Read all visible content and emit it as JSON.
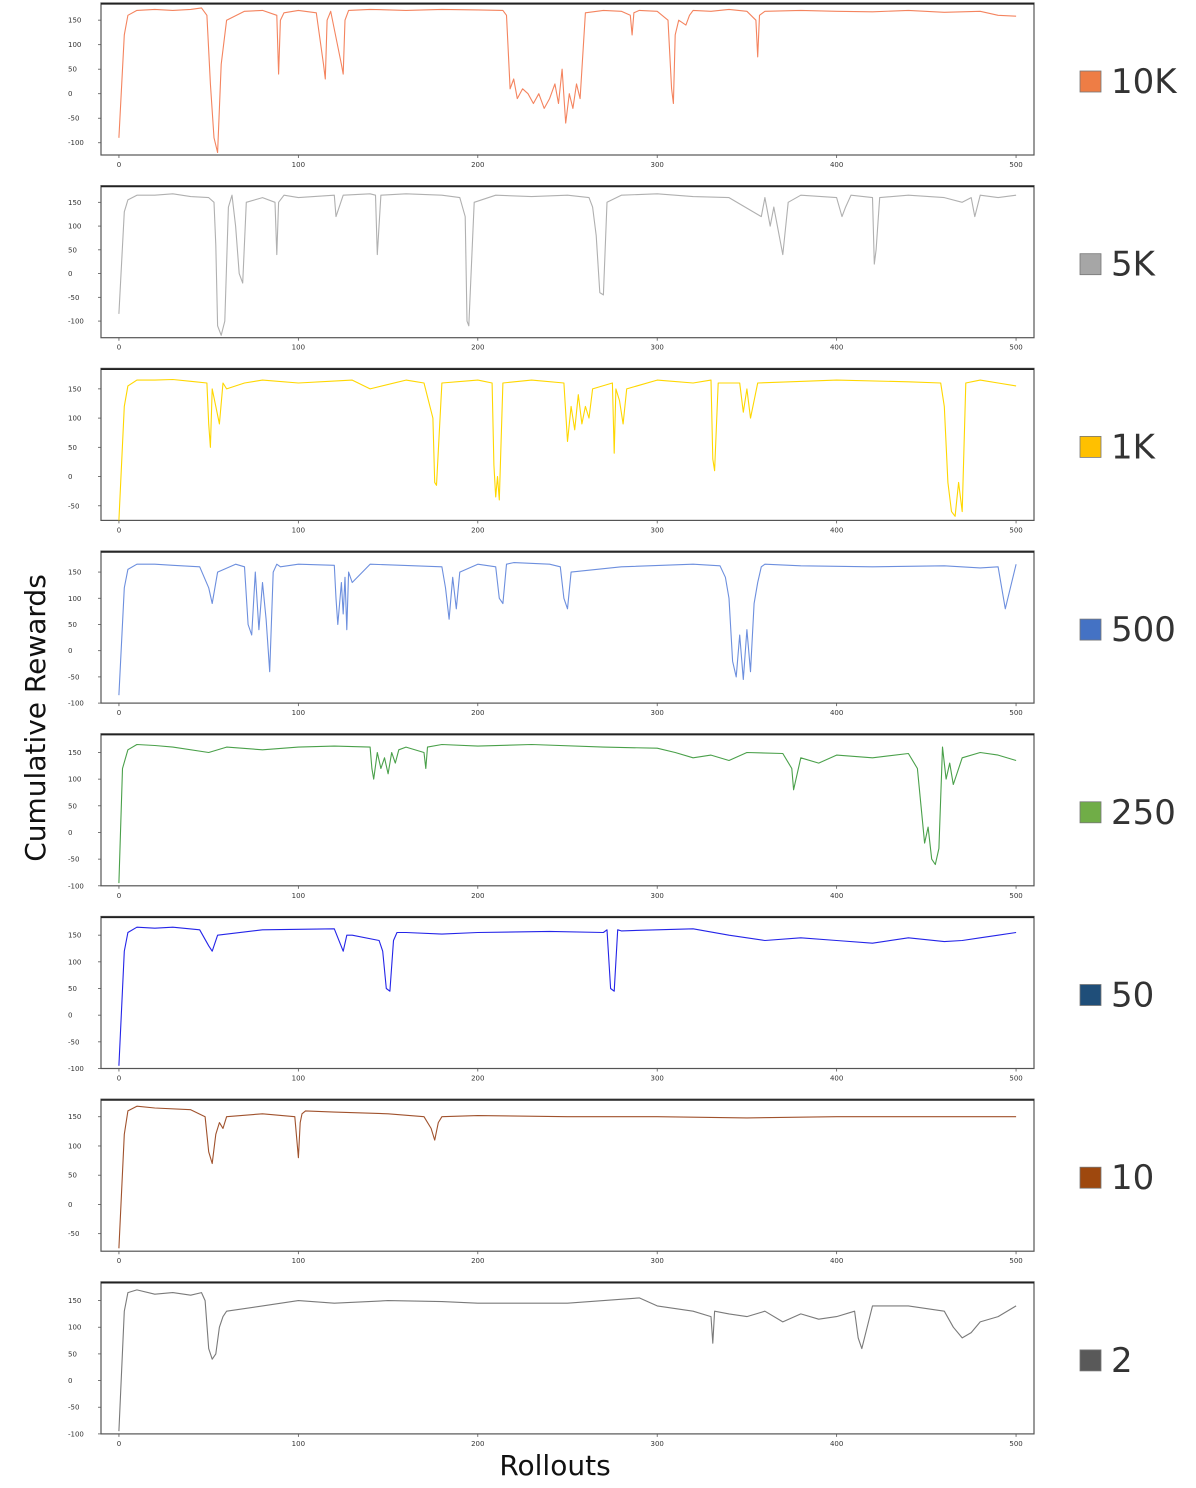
{
  "figure": {
    "xlabel": "Rollouts",
    "ylabel": "Cumulative Rewards"
  },
  "chart_data": [
    {
      "type": "line",
      "title": "",
      "xlabel": "",
      "ylabel": "",
      "xlim": [
        -10,
        510
      ],
      "ylim": [
        -125,
        185
      ],
      "xticks": [
        "0",
        "100",
        "200",
        "300",
        "400",
        "500"
      ],
      "yticks": [
        "150",
        "100",
        "50",
        "0",
        "-50",
        "-100"
      ],
      "legend": "10K",
      "color": "#f4845f",
      "swatch": "#ee7d45",
      "x": [
        0,
        3,
        5,
        10,
        20,
        30,
        40,
        46,
        49,
        51,
        53,
        55,
        57,
        60,
        70,
        80,
        88,
        89,
        90,
        92,
        100,
        110,
        114,
        115,
        116,
        118,
        124,
        125,
        126,
        128,
        140,
        160,
        180,
        200,
        214,
        216,
        218,
        220,
        222,
        225,
        228,
        231,
        234,
        237,
        240,
        243,
        245,
        247,
        249,
        251,
        253,
        255,
        257,
        260,
        270,
        280,
        285,
        286,
        287,
        290,
        300,
        306,
        308,
        309,
        310,
        312,
        316,
        318,
        320,
        330,
        340,
        350,
        355,
        356,
        357,
        360,
        380,
        400,
        420,
        440,
        460,
        480,
        490,
        500
      ],
      "y": [
        -90,
        120,
        160,
        170,
        172,
        170,
        172,
        175,
        160,
        20,
        -90,
        -120,
        60,
        150,
        168,
        170,
        160,
        40,
        150,
        165,
        170,
        165,
        60,
        30,
        150,
        168,
        60,
        40,
        150,
        170,
        172,
        170,
        172,
        171,
        170,
        160,
        10,
        30,
        -10,
        10,
        0,
        -20,
        0,
        -30,
        -10,
        20,
        -20,
        50,
        -60,
        0,
        -30,
        20,
        -10,
        165,
        170,
        168,
        160,
        120,
        165,
        170,
        168,
        150,
        10,
        -20,
        120,
        150,
        140,
        160,
        170,
        168,
        172,
        168,
        150,
        75,
        160,
        168,
        170,
        168,
        167,
        170,
        166,
        168,
        160,
        158
      ]
    },
    {
      "type": "line",
      "title": "",
      "xlabel": "",
      "ylabel": "",
      "xlim": [
        -10,
        510
      ],
      "ylim": [
        -135,
        185
      ],
      "xticks": [
        "0",
        "100",
        "200",
        "300",
        "400",
        "500"
      ],
      "yticks": [
        "150",
        "100",
        "50",
        "0",
        "-50",
        "-100"
      ],
      "legend": "5K",
      "color": "#b0b0b0",
      "swatch": "#a6a6a6",
      "x": [
        0,
        3,
        5,
        10,
        20,
        30,
        40,
        50,
        53,
        54,
        55,
        57,
        59,
        61,
        63,
        65,
        67,
        69,
        71,
        80,
        87,
        88,
        89,
        92,
        100,
        120,
        121,
        125,
        140,
        143,
        144,
        146,
        160,
        180,
        190,
        193,
        194,
        195,
        198,
        210,
        230,
        250,
        262,
        264,
        266,
        268,
        270,
        272,
        280,
        300,
        320,
        340,
        358,
        360,
        363,
        365,
        368,
        370,
        373,
        380,
        400,
        403,
        405,
        408,
        420,
        421,
        422,
        424,
        440,
        460,
        470,
        475,
        477,
        480,
        490,
        500
      ],
      "y": [
        -85,
        130,
        155,
        165,
        165,
        168,
        162,
        160,
        150,
        60,
        -110,
        -130,
        -100,
        140,
        165,
        100,
        0,
        -20,
        150,
        160,
        150,
        40,
        150,
        165,
        160,
        165,
        120,
        165,
        168,
        165,
        40,
        165,
        168,
        165,
        160,
        120,
        -100,
        -110,
        150,
        165,
        162,
        165,
        160,
        140,
        80,
        -40,
        -45,
        150,
        165,
        168,
        162,
        160,
        120,
        160,
        100,
        140,
        80,
        40,
        150,
        165,
        160,
        120,
        140,
        165,
        160,
        20,
        50,
        160,
        165,
        160,
        150,
        160,
        120,
        165,
        160,
        165
      ]
    },
    {
      "type": "line",
      "title": "",
      "xlabel": "",
      "ylabel": "",
      "xlim": [
        -10,
        510
      ],
      "ylim": [
        -75,
        185
      ],
      "xticks": [
        "0",
        "100",
        "200",
        "300",
        "400",
        "500"
      ],
      "yticks": [
        "150",
        "100",
        "50",
        "0",
        "-50"
      ],
      "legend": "1K",
      "color": "#ffd700",
      "swatch": "#ffc000",
      "x": [
        0,
        3,
        5,
        10,
        20,
        30,
        40,
        49,
        50,
        51,
        52,
        54,
        56,
        58,
        60,
        70,
        80,
        100,
        130,
        140,
        160,
        170,
        175,
        176,
        177,
        180,
        200,
        208,
        209,
        210,
        211,
        212,
        214,
        230,
        248,
        250,
        252,
        254,
        256,
        258,
        260,
        262,
        264,
        275,
        276,
        277,
        279,
        281,
        283,
        300,
        320,
        330,
        331,
        332,
        334,
        346,
        348,
        350,
        352,
        354,
        356,
        400,
        440,
        458,
        460,
        462,
        464,
        466,
        468,
        470,
        472,
        480,
        490,
        500
      ],
      "y": [
        -75,
        120,
        155,
        165,
        165,
        166,
        163,
        160,
        90,
        50,
        150,
        120,
        90,
        160,
        150,
        160,
        165,
        160,
        165,
        150,
        165,
        160,
        100,
        -10,
        -15,
        160,
        165,
        160,
        20,
        -35,
        0,
        -40,
        160,
        165,
        160,
        60,
        120,
        80,
        140,
        90,
        120,
        100,
        150,
        160,
        40,
        150,
        130,
        90,
        150,
        165,
        160,
        165,
        30,
        10,
        160,
        160,
        110,
        150,
        100,
        130,
        160,
        165,
        162,
        160,
        120,
        -10,
        -60,
        -68,
        -10,
        -60,
        160,
        165,
        160,
        155
      ]
    },
    {
      "type": "line",
      "title": "",
      "xlabel": "",
      "ylabel": "",
      "xlim": [
        -10,
        510
      ],
      "ylim": [
        -100,
        190
      ],
      "xticks": [
        "0",
        "100",
        "200",
        "300",
        "400",
        "500"
      ],
      "yticks": [
        "150",
        "100",
        "50",
        "0",
        "-50",
        "-100"
      ],
      "legend": "500",
      "color": "#6d8fde",
      "swatch": "#4472c4",
      "x": [
        0,
        3,
        5,
        10,
        20,
        30,
        45,
        50,
        52,
        55,
        65,
        70,
        72,
        74,
        76,
        78,
        80,
        82,
        84,
        86,
        88,
        90,
        100,
        120,
        121,
        122,
        124,
        125,
        126,
        127,
        128,
        130,
        140,
        180,
        182,
        184,
        186,
        188,
        190,
        200,
        210,
        212,
        214,
        216,
        220,
        240,
        246,
        248,
        250,
        252,
        280,
        320,
        335,
        338,
        340,
        342,
        344,
        346,
        348,
        350,
        352,
        354,
        356,
        358,
        360,
        380,
        420,
        460,
        480,
        490,
        492,
        494,
        500
      ],
      "y": [
        -85,
        120,
        155,
        165,
        165,
        163,
        160,
        120,
        90,
        150,
        165,
        160,
        50,
        30,
        150,
        40,
        130,
        60,
        -40,
        150,
        165,
        160,
        165,
        163,
        100,
        50,
        130,
        70,
        140,
        40,
        150,
        130,
        165,
        160,
        120,
        60,
        140,
        80,
        150,
        165,
        160,
        100,
        90,
        165,
        168,
        165,
        160,
        100,
        80,
        150,
        160,
        165,
        162,
        140,
        100,
        -20,
        -50,
        30,
        -55,
        40,
        -40,
        90,
        130,
        160,
        165,
        162,
        160,
        162,
        158,
        160,
        120,
        80,
        165
      ]
    },
    {
      "type": "line",
      "title": "",
      "xlabel": "",
      "ylabel": "",
      "xlim": [
        -10,
        510
      ],
      "ylim": [
        -100,
        185
      ],
      "xticks": [
        "0",
        "100",
        "200",
        "300",
        "400",
        "500"
      ],
      "yticks": [
        "150",
        "100",
        "50",
        "0",
        "-50",
        "-100"
      ],
      "legend": "250",
      "color": "#4aa04a",
      "swatch": "#70ad47",
      "x": [
        0,
        2,
        5,
        10,
        20,
        30,
        50,
        60,
        80,
        100,
        120,
        140,
        141,
        142,
        144,
        146,
        148,
        150,
        152,
        154,
        156,
        160,
        170,
        171,
        172,
        180,
        200,
        230,
        270,
        300,
        310,
        320,
        330,
        340,
        350,
        370,
        375,
        376,
        380,
        390,
        400,
        420,
        440,
        445,
        447,
        449,
        451,
        453,
        455,
        457,
        459,
        461,
        463,
        465,
        470,
        480,
        490,
        500
      ],
      "y": [
        -95,
        120,
        155,
        165,
        163,
        160,
        150,
        160,
        155,
        160,
        162,
        160,
        120,
        100,
        150,
        120,
        140,
        110,
        150,
        130,
        155,
        160,
        150,
        120,
        160,
        165,
        162,
        165,
        160,
        158,
        150,
        140,
        145,
        135,
        150,
        148,
        120,
        80,
        140,
        130,
        145,
        140,
        148,
        120,
        50,
        -20,
        10,
        -50,
        -60,
        -30,
        160,
        100,
        130,
        90,
        140,
        150,
        145,
        135
      ]
    },
    {
      "type": "line",
      "title": "",
      "xlabel": "",
      "ylabel": "",
      "xlim": [
        -10,
        510
      ],
      "ylim": [
        -100,
        185
      ],
      "xticks": [
        "0",
        "100",
        "200",
        "300",
        "400",
        "500"
      ],
      "yticks": [
        "150",
        "100",
        "50",
        "0",
        "-50",
        "-100"
      ],
      "legend": "50",
      "color": "#2424e8",
      "swatch": "#1f4e79",
      "x": [
        0,
        3,
        5,
        10,
        20,
        30,
        45,
        50,
        52,
        55,
        80,
        120,
        125,
        127,
        130,
        145,
        147,
        149,
        151,
        153,
        155,
        160,
        180,
        200,
        240,
        270,
        272,
        274,
        276,
        278,
        280,
        300,
        320,
        340,
        360,
        380,
        400,
        420,
        440,
        460,
        470,
        480,
        490,
        500
      ],
      "y": [
        -95,
        120,
        155,
        165,
        163,
        165,
        160,
        130,
        120,
        150,
        160,
        162,
        120,
        150,
        150,
        140,
        120,
        50,
        45,
        140,
        155,
        155,
        152,
        155,
        157,
        155,
        160,
        50,
        45,
        160,
        158,
        160,
        162,
        150,
        140,
        145,
        140,
        135,
        145,
        138,
        140,
        145,
        150,
        155
      ]
    },
    {
      "type": "line",
      "title": "",
      "xlabel": "",
      "ylabel": "",
      "xlim": [
        -10,
        510
      ],
      "ylim": [
        -80,
        180
      ],
      "xticks": [
        "0",
        "100",
        "200",
        "300",
        "400",
        "500"
      ],
      "yticks": [
        "150",
        "100",
        "50",
        "0",
        "-50"
      ],
      "legend": "10",
      "color": "#a0522d",
      "swatch": "#9e480e",
      "x": [
        0,
        3,
        5,
        10,
        20,
        40,
        48,
        50,
        52,
        54,
        56,
        58,
        60,
        80,
        98,
        100,
        101,
        102,
        104,
        120,
        150,
        170,
        174,
        176,
        178,
        180,
        200,
        250,
        300,
        350,
        400,
        450,
        500
      ],
      "y": [
        -75,
        120,
        160,
        168,
        165,
        162,
        150,
        90,
        70,
        120,
        140,
        130,
        150,
        155,
        150,
        80,
        140,
        155,
        160,
        158,
        155,
        150,
        130,
        110,
        140,
        150,
        152,
        150,
        150,
        148,
        150,
        150,
        150
      ]
    },
    {
      "type": "line",
      "title": "",
      "xlabel": "",
      "ylabel": "",
      "xlim": [
        -10,
        510
      ],
      "ylim": [
        -100,
        185
      ],
      "xticks": [
        "0",
        "100",
        "200",
        "300",
        "400",
        "500"
      ],
      "yticks": [
        "150",
        "100",
        "50",
        "0",
        "-50",
        "-100"
      ],
      "legend": "2",
      "color": "#7a7a7a",
      "swatch": "#595959",
      "x": [
        0,
        3,
        5,
        10,
        20,
        30,
        40,
        46,
        48,
        50,
        52,
        54,
        56,
        58,
        60,
        80,
        100,
        120,
        150,
        180,
        200,
        250,
        290,
        300,
        320,
        330,
        331,
        332,
        340,
        350,
        360,
        370,
        380,
        390,
        400,
        410,
        412,
        414,
        420,
        440,
        460,
        465,
        470,
        475,
        480,
        490,
        500
      ],
      "y": [
        -95,
        130,
        165,
        170,
        162,
        165,
        160,
        165,
        150,
        60,
        40,
        50,
        100,
        120,
        130,
        140,
        150,
        145,
        150,
        148,
        145,
        145,
        155,
        140,
        130,
        120,
        70,
        130,
        125,
        120,
        130,
        110,
        125,
        115,
        120,
        130,
        80,
        60,
        140,
        140,
        130,
        100,
        80,
        90,
        110,
        120,
        140
      ]
    }
  ]
}
